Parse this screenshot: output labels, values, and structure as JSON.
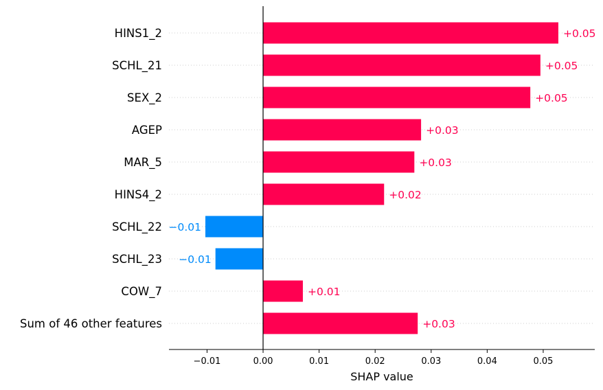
{
  "chart_data": {
    "type": "bar",
    "orientation": "horizontal",
    "categories": [
      "HINS1_2",
      "SCHL_21",
      "SEX_2",
      "AGEP",
      "MAR_5",
      "HINS4_2",
      "SCHL_22",
      "SCHL_23",
      "COW_7",
      "Sum of 46 other features"
    ],
    "values": [
      0.0527,
      0.0495,
      0.0477,
      0.0282,
      0.027,
      0.0216,
      -0.0103,
      -0.0085,
      0.0071,
      0.0276
    ],
    "value_labels": [
      "+0.05",
      "+0.05",
      "+0.05",
      "+0.03",
      "+0.03",
      "+0.02",
      "−0.01",
      "−0.01",
      "+0.01",
      "+0.03"
    ],
    "xlabel": "SHAP value",
    "xlim": [
      -0.0168,
      0.0592
    ],
    "xticks": [
      -0.01,
      0.0,
      0.01,
      0.02,
      0.03,
      0.04,
      0.05
    ],
    "xtick_labels": [
      "−0.01",
      "0.00",
      "0.01",
      "0.02",
      "0.03",
      "0.04",
      "0.05"
    ],
    "grid": "dotted horizontal row guides",
    "colors": {
      "positive": "#ff0051",
      "negative": "#008bfb",
      "axis": "#000000"
    }
  }
}
